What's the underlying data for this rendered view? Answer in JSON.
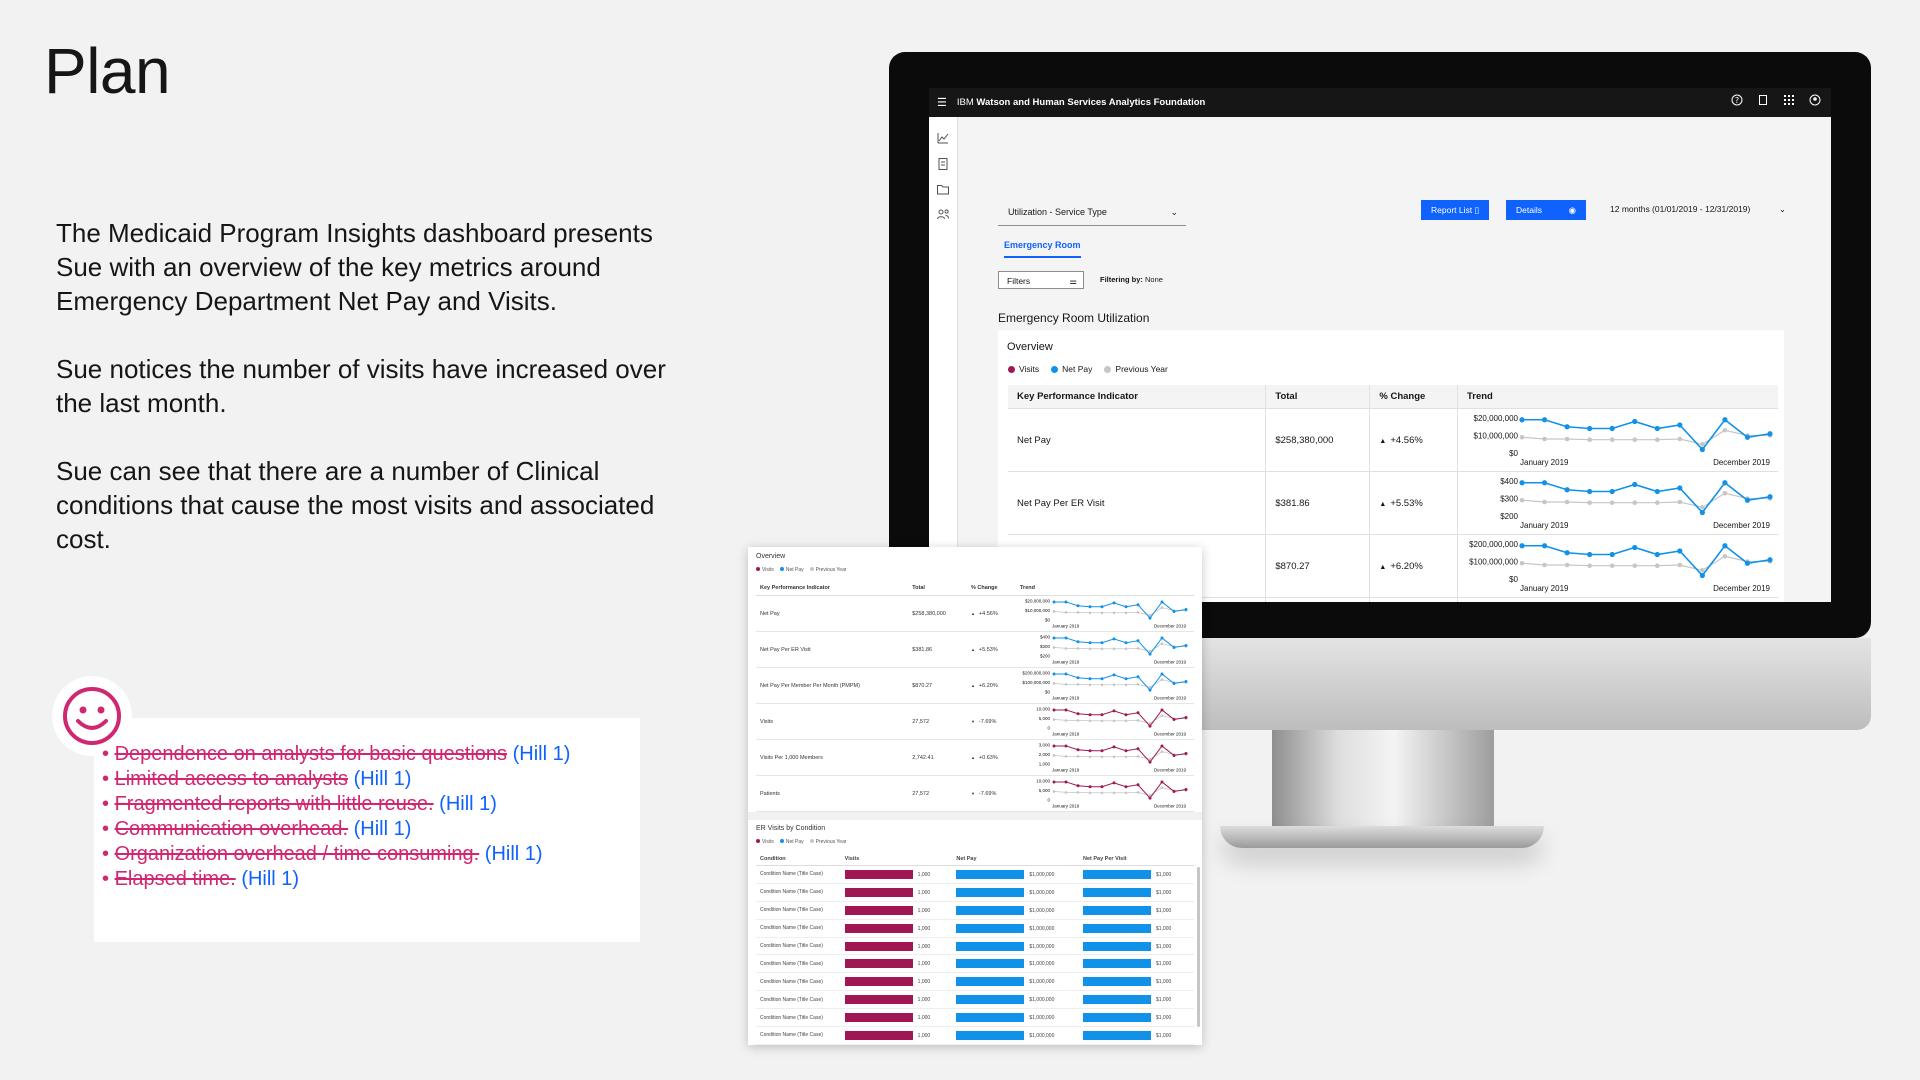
{
  "slide": {
    "title": "Plan",
    "paragraphs": [
      "The Medicaid Program Insights dashboard presents Sue with an overview of the key metrics around Emergency Department Net Pay and Visits.",
      "Sue notices the number of visits have increased over the last month.",
      "Sue can see that there are a number of Clinical conditions that cause the most visits and associated cost."
    ],
    "pain_points": [
      {
        "text": "Dependence on analysts for basic questions",
        "tag": "(Hill 1)"
      },
      {
        "text": "Limited access to analysts",
        "tag": "(Hill 1)"
      },
      {
        "text": "Fragmented  reports with little reuse.",
        "tag": "(Hill 1)"
      },
      {
        "text": "Communication overhead.",
        "tag": "(Hill 1)"
      },
      {
        "text": "Organization overhead / time consuming.",
        "tag": "(Hill 1)"
      },
      {
        "text": "Elapsed time.",
        "tag": "(Hill 1)"
      }
    ],
    "bullet": "•",
    "smiley_icon": "smiley-face-icon",
    "accent_magenta": "#d12771",
    "accent_blue": "#0f62fe"
  },
  "app": {
    "brand_prefix": "IBM",
    "brand_name": "Watson and Human Services Analytics Foundation",
    "service_select": "Utilization - Service Type",
    "report_list_button": "Report List",
    "details_button": "Details",
    "date_range": "12 months (01/01/2019 - 12/31/2019)",
    "tab": "Emergency Room",
    "filters_label": "Filters",
    "filtering_by_label": "Filtering by:",
    "filtering_by_value": "None",
    "section_title": "Emergency Room Utilization",
    "overview_title": "Overview",
    "legend": [
      {
        "label": "Visits",
        "color": "#9f1853"
      },
      {
        "label": "Net Pay",
        "color": "#1192e8"
      },
      {
        "label": "Previous Year",
        "color": "#c6c6c6"
      }
    ],
    "kpi_headers": [
      "Key Performance Indicator",
      "Total",
      "% Change",
      "Trend"
    ],
    "kpi_rows": [
      {
        "name": "Net Pay",
        "total": "$258,380,000",
        "change": "+4.56%",
        "dir": "up",
        "yticks": [
          "$20,000,000",
          "$10,000,000",
          "$0"
        ],
        "color": "#1192e8"
      },
      {
        "name": "Net Pay Per ER Visit",
        "total": "$381.86",
        "change": "+5.53%",
        "dir": "up",
        "yticks": [
          "$400",
          "$300",
          "$200"
        ],
        "color": "#1192e8"
      },
      {
        "name": "Net Pay Per Member Per Month (PMPM)",
        "total": "$870.27",
        "change": "+6.20%",
        "dir": "up",
        "yticks": [
          "$200,000,000",
          "$100,000,000",
          "$0"
        ],
        "color": "#1192e8"
      },
      {
        "name": "Visits",
        "total": "27,572",
        "change": "-7.69%",
        "dir": "down",
        "yticks": [
          "10,000",
          "5,000",
          "0"
        ],
        "color": "#9f1853"
      }
    ],
    "trend_start": "January 2019",
    "trend_end": "December 2019"
  },
  "panel": {
    "overview_title": "Overview",
    "kpi_headers": [
      "Key Performance Indicator",
      "Total",
      "% Change",
      "Trend"
    ],
    "kpi_rows": [
      {
        "name": "Net Pay",
        "total": "$258,380,000",
        "change": "+4.56%",
        "dir": "up",
        "yticks": [
          "$20,000,000",
          "$10,000,000",
          "$0"
        ],
        "color": "#1192e8"
      },
      {
        "name": "Net Pay Per ER Visit",
        "total": "$381.86",
        "change": "+5.53%",
        "dir": "up",
        "yticks": [
          "$400",
          "$300",
          "$200"
        ],
        "color": "#1192e8"
      },
      {
        "name": "Net Pay Per Member Per Month (PMPM)",
        "total": "$870.27",
        "change": "+6.20%",
        "dir": "up",
        "yticks": [
          "$200,000,000",
          "$100,000,000",
          "$0"
        ],
        "color": "#1192e8"
      },
      {
        "name": "Visits",
        "total": "27,572",
        "change": "-7.69%",
        "dir": "down",
        "yticks": [
          "10,000",
          "5,000",
          "0"
        ],
        "color": "#9f1853"
      },
      {
        "name": "Visits Per 1,000 Members",
        "total": "2,742.41",
        "change": "+0.63%",
        "dir": "up",
        "yticks": [
          "3,000",
          "2,000",
          "1,000"
        ],
        "color": "#9f1853"
      },
      {
        "name": "Patients",
        "total": "27,572",
        "change": "-7.69%",
        "dir": "down",
        "yticks": [
          "10,000",
          "5,000",
          "0"
        ],
        "color": "#9f1853"
      }
    ],
    "er_title": "ER Visits by Condition",
    "er_headers": [
      "Condition",
      "Visits",
      "Net Pay",
      "Net Pay Per Visit"
    ],
    "er_rows": [
      {
        "condition": "Condition Name (Title Case)",
        "visits": "1,000",
        "net_pay": "$1,000,000",
        "per_visit": "$1,000"
      },
      {
        "condition": "Condition Name (Title Case)",
        "visits": "1,000",
        "net_pay": "$1,000,000",
        "per_visit": "$1,000"
      },
      {
        "condition": "Condition Name (Title Case)",
        "visits": "1,000",
        "net_pay": "$1,000,000",
        "per_visit": "$1,000"
      },
      {
        "condition": "Condition Name (Title Case)",
        "visits": "1,000",
        "net_pay": "$1,000,000",
        "per_visit": "$1,000"
      },
      {
        "condition": "Condition Name (Title Case)",
        "visits": "1,000",
        "net_pay": "$1,000,000",
        "per_visit": "$1,000"
      },
      {
        "condition": "Condition Name (Title Case)",
        "visits": "1,000",
        "net_pay": "$1,000,000",
        "per_visit": "$1,000"
      },
      {
        "condition": "Condition Name (Title Case)",
        "visits": "1,000",
        "net_pay": "$1,000,000",
        "per_visit": "$1,000"
      },
      {
        "condition": "Condition Name (Title Case)",
        "visits": "1,000",
        "net_pay": "$1,000,000",
        "per_visit": "$1,000"
      },
      {
        "condition": "Condition Name (Title Case)",
        "visits": "1,000",
        "net_pay": "$1,000,000",
        "per_visit": "$1,000"
      },
      {
        "condition": "Condition Name (Title Case)",
        "visits": "1,000",
        "net_pay": "$1,000,000",
        "per_visit": "$1,000"
      },
      {
        "condition": "Condition Name (Title Case)",
        "visits": "1,000",
        "net_pay": "$1,000,000",
        "per_visit": "$1,000"
      },
      {
        "condition": "Condition Name (Title Case)",
        "visits": "1,000",
        "net_pay": "$1,000,000",
        "per_visit": "$1,000"
      },
      {
        "condition": "Condition Name (Title Case)",
        "visits": "1,000",
        "net_pay": "$1,000,000",
        "per_visit": "$1,000"
      },
      {
        "condition": "Condition Name (Title Case)",
        "visits": "1,000",
        "net_pay": "$1,000,000",
        "per_visit": "$1,000"
      }
    ]
  },
  "icons": {
    "topbar": [
      "help-icon",
      "notification-icon",
      "app-switcher-icon",
      "user-avatar-icon"
    ],
    "rail": [
      "chart-line-icon",
      "document-icon",
      "folder-icon",
      "user-group-icon"
    ]
  }
}
